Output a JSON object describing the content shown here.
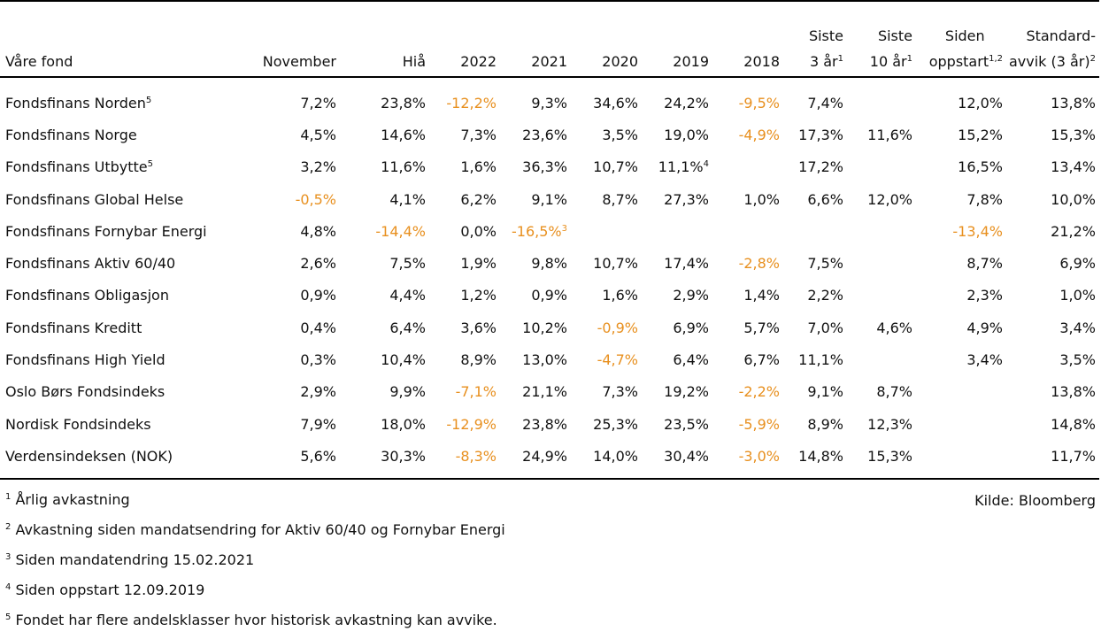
{
  "colors": {
    "negative": "#e8901f",
    "text": "#111111",
    "rule": "#000000"
  },
  "headers": {
    "fund": "Våre fond",
    "nov": "November",
    "hia": "Hiå",
    "y2022": "2022",
    "y2021": "2021",
    "y2020": "2020",
    "y2019": "2019",
    "y2018": "2018",
    "s3_l1": "Siste",
    "s3_l2": "3 år",
    "s3_sup": "1",
    "s10_l1": "Siste",
    "s10_l2": "10 år",
    "s10_sup": "1",
    "since_l1": "Siden",
    "since_l2": "oppstart",
    "since_sup": "1,2",
    "std_l1": "Standard-",
    "std_l2": "avvik (3 år)",
    "std_sup": "2"
  },
  "rows": [
    {
      "name": "Fondsfinans Norden",
      "sup": "5",
      "cells": [
        {
          "v": "7,2%"
        },
        {
          "v": "23,8%"
        },
        {
          "v": "-12,2%",
          "neg": true
        },
        {
          "v": "9,3%"
        },
        {
          "v": "34,6%"
        },
        {
          "v": "24,2%"
        },
        {
          "v": "-9,5%",
          "neg": true
        },
        {
          "v": "7,4%"
        },
        {
          "v": ""
        },
        {
          "v": "12,0%"
        },
        {
          "v": "13,8%"
        }
      ]
    },
    {
      "name": "Fondsfinans Norge",
      "sup": "",
      "cells": [
        {
          "v": "4,5%"
        },
        {
          "v": "14,6%"
        },
        {
          "v": "7,3%"
        },
        {
          "v": "23,6%"
        },
        {
          "v": "3,5%"
        },
        {
          "v": "19,0%"
        },
        {
          "v": "-4,9%",
          "neg": true
        },
        {
          "v": "17,3%"
        },
        {
          "v": "11,6%"
        },
        {
          "v": "15,2%"
        },
        {
          "v": "15,3%"
        }
      ]
    },
    {
      "name": "Fondsfinans Utbytte",
      "sup": "5",
      "cells": [
        {
          "v": "3,2%"
        },
        {
          "v": "11,6%"
        },
        {
          "v": "1,6%"
        },
        {
          "v": "36,3%"
        },
        {
          "v": "10,7%"
        },
        {
          "v": "11,1%",
          "sup": "4"
        },
        {
          "v": ""
        },
        {
          "v": "17,2%"
        },
        {
          "v": ""
        },
        {
          "v": "16,5%"
        },
        {
          "v": "13,4%"
        }
      ]
    },
    {
      "name": "Fondsfinans Global Helse",
      "sup": "",
      "cells": [
        {
          "v": "-0,5%",
          "neg": true
        },
        {
          "v": "4,1%"
        },
        {
          "v": "6,2%"
        },
        {
          "v": "9,1%"
        },
        {
          "v": "8,7%"
        },
        {
          "v": "27,3%"
        },
        {
          "v": "1,0%"
        },
        {
          "v": "6,6%"
        },
        {
          "v": "12,0%"
        },
        {
          "v": "7,8%"
        },
        {
          "v": "10,0%"
        }
      ]
    },
    {
      "name": "Fondsfinans Fornybar Energi",
      "sup": "",
      "cells": [
        {
          "v": "4,8%"
        },
        {
          "v": "-14,4%",
          "neg": true
        },
        {
          "v": "0,0%"
        },
        {
          "v": "-16,5%",
          "neg": true,
          "sup": "3"
        },
        {
          "v": ""
        },
        {
          "v": ""
        },
        {
          "v": ""
        },
        {
          "v": ""
        },
        {
          "v": ""
        },
        {
          "v": "-13,4%",
          "neg": true
        },
        {
          "v": "21,2%"
        }
      ]
    },
    {
      "name": "Fondsfinans Aktiv 60/40",
      "sup": "",
      "cells": [
        {
          "v": "2,6%"
        },
        {
          "v": "7,5%"
        },
        {
          "v": "1,9%"
        },
        {
          "v": "9,8%"
        },
        {
          "v": "10,7%"
        },
        {
          "v": "17,4%"
        },
        {
          "v": "-2,8%",
          "neg": true
        },
        {
          "v": "7,5%"
        },
        {
          "v": ""
        },
        {
          "v": "8,7%"
        },
        {
          "v": "6,9%"
        }
      ]
    },
    {
      "name": "Fondsfinans Obligasjon",
      "sup": "",
      "cells": [
        {
          "v": "0,9%"
        },
        {
          "v": "4,4%"
        },
        {
          "v": "1,2%"
        },
        {
          "v": "0,9%"
        },
        {
          "v": "1,6%"
        },
        {
          "v": "2,9%"
        },
        {
          "v": "1,4%"
        },
        {
          "v": "2,2%"
        },
        {
          "v": ""
        },
        {
          "v": "2,3%"
        },
        {
          "v": "1,0%"
        }
      ]
    },
    {
      "name": "Fondsfinans Kreditt",
      "sup": "",
      "cells": [
        {
          "v": "0,4%"
        },
        {
          "v": "6,4%"
        },
        {
          "v": "3,6%"
        },
        {
          "v": "10,2%"
        },
        {
          "v": "-0,9%",
          "neg": true
        },
        {
          "v": "6,9%"
        },
        {
          "v": "5,7%"
        },
        {
          "v": "7,0%"
        },
        {
          "v": "4,6%"
        },
        {
          "v": "4,9%"
        },
        {
          "v": "3,4%"
        }
      ]
    },
    {
      "name": "Fondsfinans High Yield",
      "sup": "",
      "cells": [
        {
          "v": "0,3%"
        },
        {
          "v": "10,4%"
        },
        {
          "v": "8,9%"
        },
        {
          "v": "13,0%"
        },
        {
          "v": "-4,7%",
          "neg": true
        },
        {
          "v": "6,4%"
        },
        {
          "v": "6,7%"
        },
        {
          "v": "11,1%"
        },
        {
          "v": ""
        },
        {
          "v": "3,4%"
        },
        {
          "v": "3,5%"
        }
      ]
    },
    {
      "name": "Oslo Børs Fondsindeks",
      "sup": "",
      "cells": [
        {
          "v": "2,9%"
        },
        {
          "v": "9,9%"
        },
        {
          "v": "-7,1%",
          "neg": true
        },
        {
          "v": "21,1%"
        },
        {
          "v": "7,3%"
        },
        {
          "v": "19,2%"
        },
        {
          "v": "-2,2%",
          "neg": true
        },
        {
          "v": "9,1%"
        },
        {
          "v": "8,7%"
        },
        {
          "v": ""
        },
        {
          "v": "13,8%"
        }
      ]
    },
    {
      "name": "Nordisk Fondsindeks",
      "sup": "",
      "cells": [
        {
          "v": "7,9%"
        },
        {
          "v": "18,0%"
        },
        {
          "v": "-12,9%",
          "neg": true
        },
        {
          "v": "23,8%"
        },
        {
          "v": "25,3%"
        },
        {
          "v": "23,5%"
        },
        {
          "v": "-5,9%",
          "neg": true
        },
        {
          "v": "8,9%"
        },
        {
          "v": "12,3%"
        },
        {
          "v": ""
        },
        {
          "v": "14,8%"
        }
      ]
    },
    {
      "name": "Verdensindeksen (NOK)",
      "sup": "",
      "cells": [
        {
          "v": "5,6%"
        },
        {
          "v": "30,3%"
        },
        {
          "v": "-8,3%",
          "neg": true
        },
        {
          "v": "24,9%"
        },
        {
          "v": "14,0%"
        },
        {
          "v": "30,4%"
        },
        {
          "v": "-3,0%",
          "neg": true
        },
        {
          "v": "14,8%"
        },
        {
          "v": "15,3%"
        },
        {
          "v": ""
        },
        {
          "v": "11,7%"
        }
      ]
    }
  ],
  "footnotes": [
    {
      "num": "1",
      "text": "Årlig avkastning"
    },
    {
      "num": "2",
      "text": "Avkastning siden mandatsendring for Aktiv 60/40 og Fornybar Energi"
    },
    {
      "num": "3",
      "text": "Siden mandatendring 15.02.2021"
    },
    {
      "num": "4",
      "text": "Siden oppstart 12.09.2019"
    },
    {
      "num": "5",
      "text": "Fondet har flere andelsklasser hvor historisk avkastning kan avvike."
    }
  ],
  "source": "Kilde: Bloomberg"
}
